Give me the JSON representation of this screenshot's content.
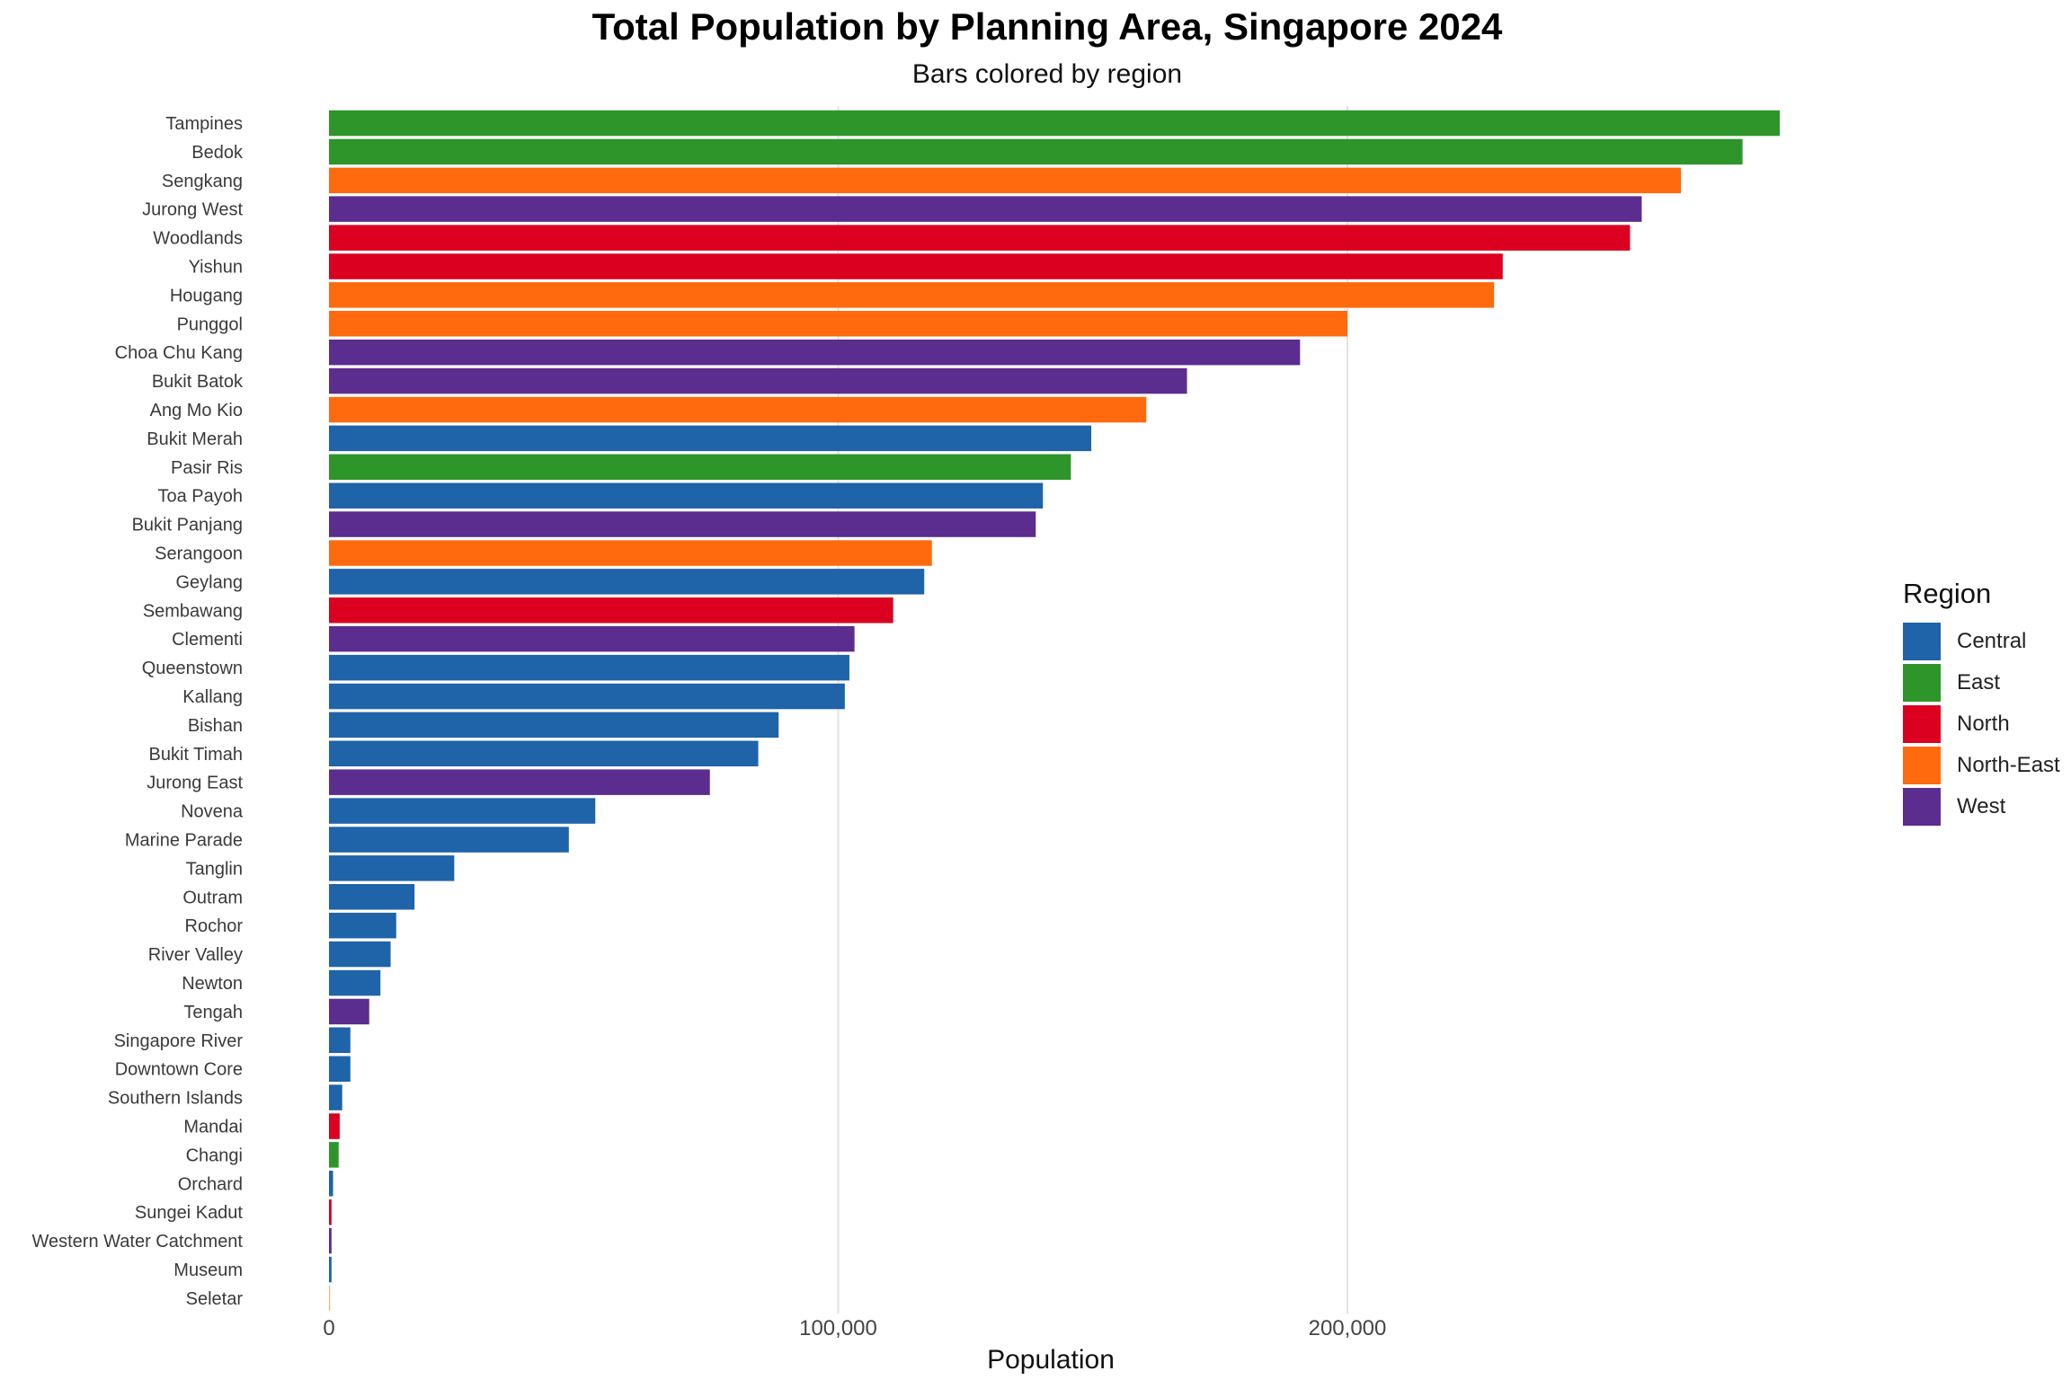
{
  "chart_data": {
    "type": "bar",
    "orientation": "horizontal",
    "title": "Total Population by Planning Area, Singapore 2024",
    "subtitle": "Bars colored by region",
    "xlabel": "Population",
    "ylabel": "",
    "xlim": [
      0,
      285000
    ],
    "xticks": [
      0,
      100000,
      200000
    ],
    "xtick_labels": [
      "0",
      "100,000",
      "200,000"
    ],
    "grid": "vertical major",
    "legend": {
      "title": "Region",
      "placement": "right",
      "entries": [
        {
          "name": "Central",
          "color": "#1F63A8"
        },
        {
          "name": "East",
          "color": "#2E952A"
        },
        {
          "name": "North",
          "color": "#DB001F"
        },
        {
          "name": "North-East",
          "color": "#FF6A0E"
        },
        {
          "name": "West",
          "color": "#5B2D8E"
        }
      ]
    },
    "bars": [
      {
        "category": "Tampines",
        "value": 284900,
        "region": "East"
      },
      {
        "category": "Bedok",
        "value": 277600,
        "region": "East"
      },
      {
        "category": "Sengkang",
        "value": 265500,
        "region": "North-East"
      },
      {
        "category": "Jurong West",
        "value": 257800,
        "region": "West"
      },
      {
        "category": "Woodlands",
        "value": 255500,
        "region": "North"
      },
      {
        "category": "Yishun",
        "value": 230500,
        "region": "North"
      },
      {
        "category": "Hougang",
        "value": 228800,
        "region": "North-East"
      },
      {
        "category": "Punggol",
        "value": 200000,
        "region": "North-East"
      },
      {
        "category": "Choa Chu Kang",
        "value": 190700,
        "region": "West"
      },
      {
        "category": "Bukit Batok",
        "value": 168500,
        "region": "West"
      },
      {
        "category": "Ang Mo Kio",
        "value": 160500,
        "region": "North-East"
      },
      {
        "category": "Bukit Merah",
        "value": 149700,
        "region": "Central"
      },
      {
        "category": "Pasir Ris",
        "value": 145700,
        "region": "East"
      },
      {
        "category": "Toa Payoh",
        "value": 140200,
        "region": "Central"
      },
      {
        "category": "Bukit Panjang",
        "value": 138800,
        "region": "West"
      },
      {
        "category": "Serangoon",
        "value": 118400,
        "region": "North-East"
      },
      {
        "category": "Geylang",
        "value": 116900,
        "region": "Central"
      },
      {
        "category": "Sembawang",
        "value": 110800,
        "region": "North"
      },
      {
        "category": "Clementi",
        "value": 103200,
        "region": "West"
      },
      {
        "category": "Queenstown",
        "value": 102200,
        "region": "Central"
      },
      {
        "category": "Kallang",
        "value": 101300,
        "region": "Central"
      },
      {
        "category": "Bishan",
        "value": 88300,
        "region": "Central"
      },
      {
        "category": "Bukit Timah",
        "value": 84300,
        "region": "Central"
      },
      {
        "category": "Jurong East",
        "value": 74800,
        "region": "West"
      },
      {
        "category": "Novena",
        "value": 52300,
        "region": "Central"
      },
      {
        "category": "Marine Parade",
        "value": 47100,
        "region": "Central"
      },
      {
        "category": "Tanglin",
        "value": 24600,
        "region": "Central"
      },
      {
        "category": "Outram",
        "value": 16800,
        "region": "Central"
      },
      {
        "category": "Rochor",
        "value": 13200,
        "region": "Central"
      },
      {
        "category": "River Valley",
        "value": 12100,
        "region": "Central"
      },
      {
        "category": "Newton",
        "value": 10100,
        "region": "Central"
      },
      {
        "category": "Tengah",
        "value": 7900,
        "region": "West"
      },
      {
        "category": "Singapore River",
        "value": 4200,
        "region": "Central"
      },
      {
        "category": "Downtown Core",
        "value": 4200,
        "region": "Central"
      },
      {
        "category": "Southern Islands",
        "value": 2600,
        "region": "Central"
      },
      {
        "category": "Mandai",
        "value": 2100,
        "region": "North"
      },
      {
        "category": "Changi",
        "value": 1900,
        "region": "East"
      },
      {
        "category": "Orchard",
        "value": 800,
        "region": "Central"
      },
      {
        "category": "Sungei Kadut",
        "value": 500,
        "region": "North"
      },
      {
        "category": "Western Water Catchment",
        "value": 500,
        "region": "West"
      },
      {
        "category": "Museum",
        "value": 500,
        "region": "Central"
      },
      {
        "category": "Seletar",
        "value": 100,
        "region": "North-East"
      }
    ]
  }
}
